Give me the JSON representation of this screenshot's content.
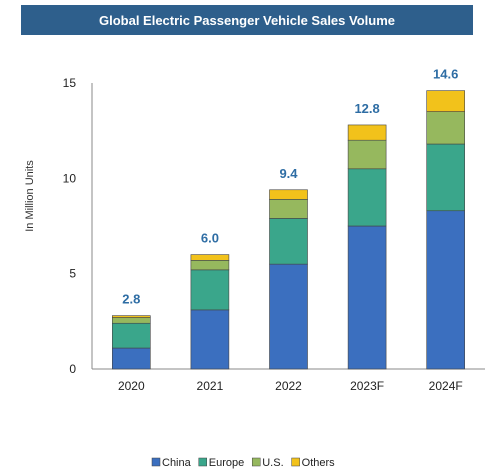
{
  "chart_data": {
    "type": "bar",
    "stacked": true,
    "title": "Global Electric Passenger Vehicle Sales Volume",
    "xlabel": "",
    "ylabel": "In Million Units",
    "ylim": [
      0,
      15
    ],
    "yticks": [
      "0",
      "5",
      "10",
      "15"
    ],
    "categories": [
      "2020",
      "2021",
      "2022",
      "2023F",
      "2024F"
    ],
    "totals": [
      "2.8",
      "6.0",
      "9.4",
      "12.8",
      "14.6"
    ],
    "series": [
      {
        "name": "China",
        "color": "#3b6fbf",
        "values": [
          1.1,
          3.1,
          5.5,
          7.5,
          8.3
        ]
      },
      {
        "name": "Europe",
        "color": "#3aa68b",
        "values": [
          1.3,
          2.1,
          2.4,
          3.0,
          3.5
        ]
      },
      {
        "name": "U.S.",
        "color": "#96b85e",
        "values": [
          0.3,
          0.5,
          1.0,
          1.5,
          1.7
        ]
      },
      {
        "name": "Others",
        "color": "#f2c21b",
        "values": [
          0.1,
          0.3,
          0.5,
          0.8,
          1.1
        ]
      }
    ],
    "legend": "bottom",
    "grid": false
  }
}
